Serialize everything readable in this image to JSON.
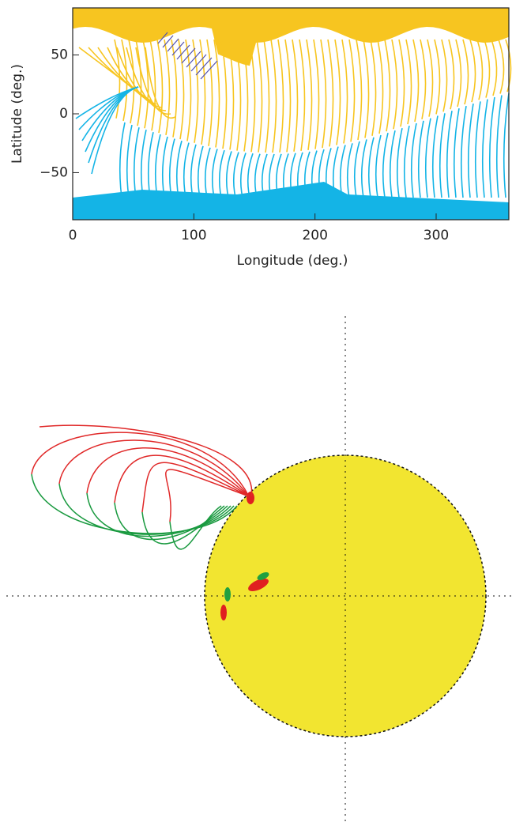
{
  "chart_data": {
    "type": "field-map",
    "xlabel": "Longitude (deg.)",
    "ylabel": "Latitude (deg.)",
    "xlim": [
      0,
      360
    ],
    "xticks": [
      0,
      100,
      200,
      300
    ],
    "ylim": [
      -90,
      90
    ],
    "yticks": [
      {
        "value": -50,
        "label": "−50"
      },
      0,
      50
    ]
  }
}
